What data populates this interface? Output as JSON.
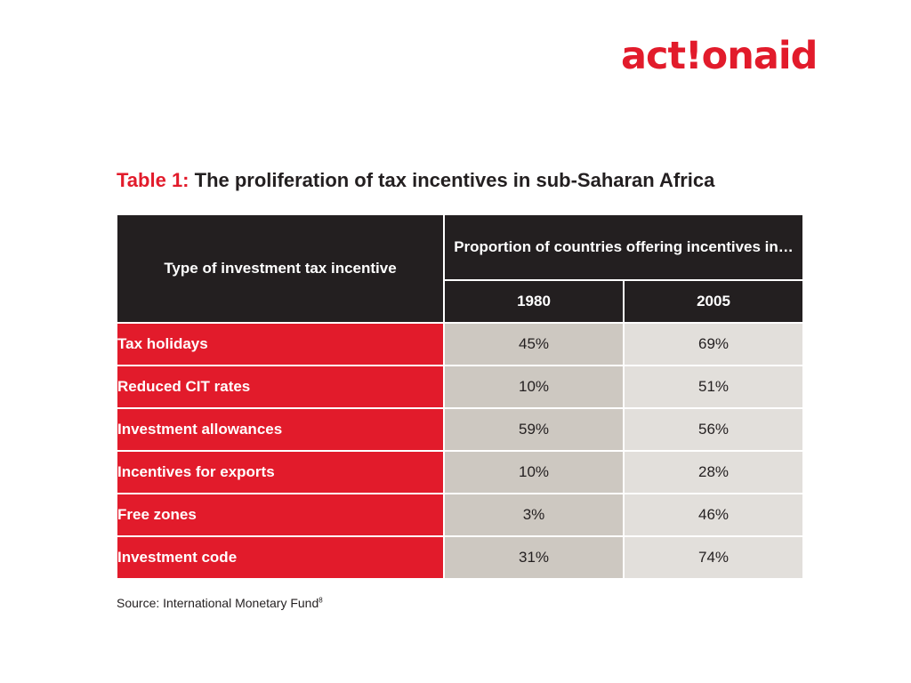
{
  "logo": {
    "text": "act!onaid"
  },
  "table": {
    "title_prefix": "Table 1:",
    "title_text": " The proliferation of tax incentives in sub-Saharan Africa",
    "type_header": "Type of investment tax incentive",
    "proportion_header": "Proportion of countries offering incentives in…",
    "years": [
      "1980",
      "2005"
    ],
    "rows": [
      {
        "label": "Tax holidays",
        "v1980": "45%",
        "v2005": "69%"
      },
      {
        "label": "Reduced CIT rates",
        "v1980": "10%",
        "v2005": "51%"
      },
      {
        "label": "Investment allowances",
        "v1980": "59%",
        "v2005": "56%"
      },
      {
        "label": "Incentives for exports",
        "v1980": "10%",
        "v2005": "28%"
      },
      {
        "label": "Free zones",
        "v1980": "3%",
        "v2005": "46%"
      },
      {
        "label": "Investment code",
        "v1980": "31%",
        "v2005": "74%"
      }
    ]
  },
  "source": {
    "text": "Source: International Monetary Fund",
    "footnote": "8"
  },
  "colors": {
    "accent_red": "#e21b2b",
    "header_black": "#231f20",
    "col_1980_bg": "#cdc8c1",
    "col_2005_bg": "#e2dfdb"
  }
}
